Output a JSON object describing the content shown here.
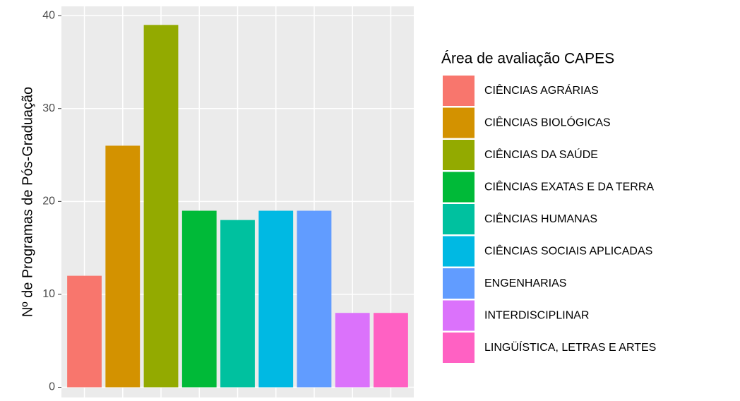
{
  "chart_data": {
    "type": "bar",
    "ylabel": "Nº de Programas de Pós-Graduação",
    "legend_title": "Área de avaliação CAPES",
    "categories": [
      "CIÊNCIAS AGRÁRIAS",
      "CIÊNCIAS BIOLÓGICAS",
      "CIÊNCIAS DA SAÚDE",
      "CIÊNCIAS EXATAS E DA TERRA",
      "CIÊNCIAS HUMANAS",
      "CIÊNCIAS SOCIAIS APLICADAS",
      "ENGENHARIAS",
      "INTERDISCIPLINAR",
      "LINGÜÍSTICA, LETRAS E ARTES"
    ],
    "values": [
      12,
      26,
      39,
      19,
      18,
      19,
      19,
      8,
      8
    ],
    "colors": [
      "#F8766D",
      "#D39200",
      "#93AA00",
      "#00BA38",
      "#00C19F",
      "#00B9E3",
      "#619CFF",
      "#DB72FB",
      "#FF61C3"
    ],
    "ylim": [
      -1.1,
      41
    ],
    "yticks": [
      0,
      10,
      20,
      30,
      40
    ],
    "grid": true,
    "legend": "right"
  }
}
